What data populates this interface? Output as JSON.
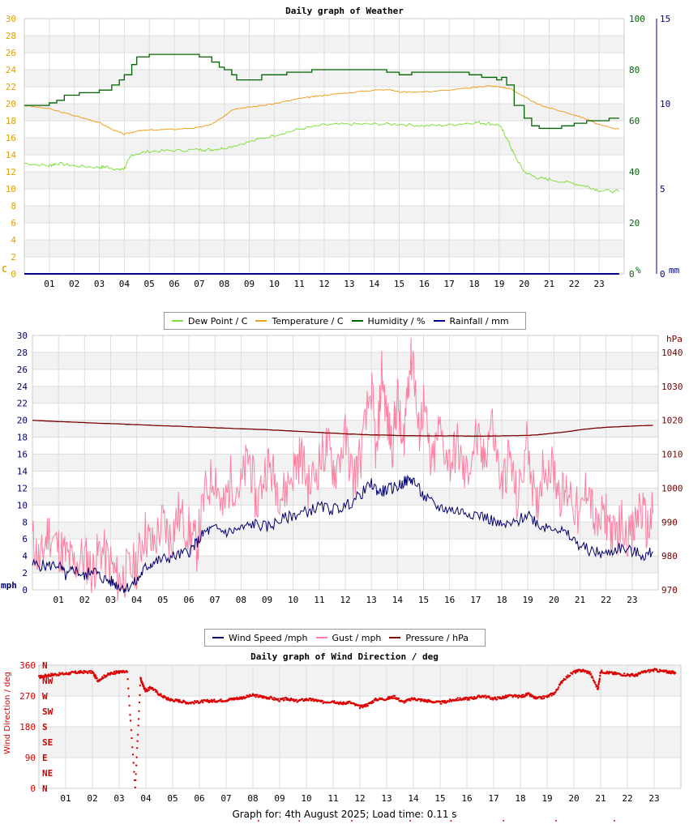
{
  "footer": "Graph for: 4th August 2025; Load time: 0.11 s",
  "colors": {
    "dew": "#7fe03c",
    "temp": "#f0a020",
    "hum": "#006400",
    "rain": "#00008b",
    "wind": "#00006e",
    "gust": "#ff7fa0",
    "pres": "#7a0000",
    "dir": "#dd0000"
  },
  "chart_data": [
    {
      "type": "line",
      "title": "Daily graph of Weather",
      "x_tick_labels": [
        "01",
        "02",
        "03",
        "04",
        "05",
        "06",
        "07",
        "08",
        "09",
        "10",
        "11",
        "12",
        "13",
        "14",
        "15",
        "16",
        "17",
        "18",
        "19",
        "20",
        "21",
        "22",
        "23"
      ],
      "y_left": {
        "unit": "C",
        "ticks": [
          "0",
          "2",
          "4",
          "6",
          "8",
          "10",
          "12",
          "14",
          "16",
          "18",
          "20",
          "22",
          "24",
          "26",
          "28",
          "30"
        ],
        "range": [
          0,
          30
        ]
      },
      "y_right1": {
        "unit": "%",
        "ticks": [
          "0",
          "20",
          "40",
          "60",
          "80",
          "100"
        ],
        "range": [
          0,
          100
        ]
      },
      "y_right2": {
        "unit": "mm",
        "ticks": [
          "0",
          "5",
          "10",
          "15"
        ],
        "range": [
          0,
          15
        ]
      },
      "legend": [
        "Dew Point / C",
        "Temperature / C",
        "Humidity / %",
        "Rainfall / mm"
      ],
      "series": [
        {
          "name": "Dew Point / C",
          "axis": "left",
          "x": [
            0,
            1,
            1.3,
            2,
            3,
            3.3,
            3.8,
            4,
            4.3,
            5,
            6,
            7,
            7.5,
            8,
            9,
            10,
            11,
            12,
            13,
            14,
            15,
            16,
            17,
            18,
            18.5,
            19,
            19.3,
            19.6,
            20,
            20.5,
            21,
            22,
            22.5,
            23,
            23.8
          ],
          "values": [
            13.0,
            12.7,
            13.0,
            12.7,
            12.5,
            12.6,
            12.2,
            12.4,
            14.0,
            14.4,
            14.5,
            14.6,
            14.6,
            14.8,
            15.5,
            16.3,
            17.0,
            17.5,
            17.6,
            17.6,
            17.6,
            17.4,
            17.5,
            17.8,
            17.7,
            17.5,
            16.0,
            14.0,
            12.0,
            11.3,
            11.1,
            10.6,
            10.3,
            9.8,
            9.7
          ]
        },
        {
          "name": "Temperature / C",
          "axis": "left",
          "x": [
            0,
            1,
            2,
            2.5,
            3,
            3.5,
            4,
            4.5,
            5,
            6,
            7,
            7.5,
            8,
            8.3,
            8.6,
            9,
            10,
            11,
            11.5,
            12,
            13,
            14,
            14.5,
            15,
            16,
            17,
            18,
            18.5,
            19,
            19.5,
            20,
            20.5,
            21,
            22,
            22.5,
            23,
            23.8
          ],
          "values": [
            19.8,
            19.4,
            18.6,
            18.2,
            17.8,
            17.0,
            16.4,
            16.8,
            16.9,
            17.0,
            17.2,
            17.6,
            18.5,
            19.3,
            19.5,
            19.6,
            20.0,
            20.6,
            20.8,
            21.0,
            21.3,
            21.6,
            21.7,
            21.4,
            21.4,
            21.6,
            21.9,
            22.1,
            22.0,
            21.7,
            20.8,
            20.0,
            19.5,
            18.7,
            18.2,
            17.5,
            17.0
          ]
        },
        {
          "name": "Humidity / %",
          "axis": "right1",
          "x": [
            0,
            0.6,
            1,
            1.3,
            1.6,
            2.2,
            2.6,
            3.0,
            3.5,
            3.8,
            4.0,
            4.3,
            4.5,
            5.0,
            5.5,
            6.0,
            6.5,
            7.0,
            7.5,
            7.8,
            8.0,
            8.3,
            8.5,
            8.8,
            9.5,
            10.0,
            10.5,
            11,
            11.5,
            12,
            12.5,
            13,
            13.5,
            14,
            14.5,
            15,
            15.5,
            16,
            16.5,
            17,
            17.5,
            17.8,
            18.0,
            18.3,
            18.5,
            18.9,
            19.1,
            19.3,
            19.6,
            20.0,
            20.3,
            20.6,
            21,
            21.5,
            22,
            22.5,
            23,
            23.4,
            23.8
          ],
          "values": [
            66,
            66,
            67,
            68,
            70,
            71,
            71,
            72,
            74,
            76,
            78,
            82,
            85,
            86,
            86,
            86,
            86,
            85,
            83,
            81,
            80,
            78,
            76,
            76,
            78,
            78,
            79,
            79,
            80,
            80,
            80,
            80,
            80,
            80,
            79,
            78,
            79,
            79,
            79,
            79,
            79,
            78,
            78,
            77,
            77,
            76,
            77,
            74,
            66,
            61,
            58,
            57,
            57,
            58,
            59,
            60,
            60,
            61,
            61
          ]
        },
        {
          "name": "Rainfall / mm",
          "axis": "right2",
          "x": [
            0,
            23.8
          ],
          "values": [
            0,
            0
          ]
        }
      ]
    },
    {
      "type": "line",
      "x_tick_labels": [
        "01",
        "02",
        "03",
        "04",
        "05",
        "06",
        "07",
        "08",
        "09",
        "10",
        "11",
        "12",
        "13",
        "14",
        "15",
        "16",
        "17",
        "18",
        "19",
        "20",
        "21",
        "22",
        "23"
      ],
      "y_left": {
        "unit": "mph",
        "ticks": [
          "0",
          "2",
          "4",
          "6",
          "8",
          "10",
          "12",
          "14",
          "16",
          "18",
          "20",
          "22",
          "24",
          "26",
          "28",
          "30"
        ],
        "range": [
          0,
          30
        ]
      },
      "y_right": {
        "unit": "hPa",
        "ticks": [
          "970",
          "980",
          "990",
          "1000",
          "1010",
          "1020",
          "1030",
          "1040"
        ],
        "range": [
          970,
          1045
        ]
      },
      "legend": [
        "Wind Speed /mph",
        "Gust / mph",
        "Pressure / hPa"
      ],
      "series": [
        {
          "name": "Wind Speed /mph",
          "axis": "left",
          "x": [
            0,
            0.5,
            1,
            1.3,
            1.6,
            2,
            2.3,
            2.6,
            3,
            3.3,
            3.6,
            4,
            4.3,
            4.6,
            5,
            5.5,
            6,
            6.3,
            6.6,
            7,
            7.5,
            8,
            8.5,
            9,
            9.5,
            10,
            10.5,
            11,
            11.5,
            12,
            12.5,
            13,
            13.3,
            13.6,
            14,
            14.3,
            14.6,
            15,
            15.5,
            16,
            16.5,
            17,
            17.5,
            18,
            18.5,
            19,
            19.5,
            20,
            20.5,
            21,
            21.5,
            22,
            22.5,
            23,
            23.5,
            23.8
          ],
          "values": [
            3.0,
            2.8,
            3.0,
            1.5,
            2.5,
            1.5,
            2.5,
            1.5,
            1.0,
            0.5,
            0.2,
            1.0,
            2.5,
            3.2,
            3.6,
            4.0,
            4.5,
            5.5,
            6.8,
            7.2,
            6.8,
            7.2,
            7.8,
            7.4,
            8.2,
            8.8,
            9.2,
            9.8,
            9.5,
            9.8,
            11.0,
            12.5,
            11.5,
            11.8,
            12.2,
            12.8,
            13.0,
            11.0,
            9.8,
            9.5,
            9.2,
            9.0,
            8.4,
            7.5,
            7.8,
            9.0,
            7.5,
            7.5,
            6.5,
            5.2,
            4.5,
            4.2,
            5.0,
            4.5,
            4.0,
            4.5
          ]
        },
        {
          "name": "Gust / mph",
          "axis": "left",
          "x": [
            0,
            0.3,
            0.6,
            1,
            1.3,
            1.6,
            2,
            2.3,
            2.6,
            3,
            3.3,
            3.6,
            4,
            4.3,
            4.6,
            5,
            5.3,
            5.6,
            6,
            6.3,
            6.6,
            7,
            7.3,
            7.6,
            8,
            8.3,
            8.6,
            9,
            9.3,
            9.6,
            10,
            10.3,
            10.6,
            11,
            11.3,
            11.6,
            12,
            12.3,
            12.6,
            13,
            13.2,
            13.4,
            13.6,
            13.8,
            14,
            14.2,
            14.4,
            14.6,
            14.8,
            15,
            15.3,
            15.6,
            16,
            16.3,
            16.6,
            17,
            17.3,
            17.6,
            18,
            18.3,
            18.6,
            19,
            19.3,
            19.6,
            20,
            20.3,
            20.6,
            21,
            21.3,
            21.6,
            22,
            22.3,
            22.6,
            23,
            23.3,
            23.6,
            23.8
          ],
          "values": [
            6,
            3,
            7,
            5,
            4,
            3,
            4,
            2,
            5,
            3,
            1,
            2,
            3,
            7,
            5,
            8,
            6,
            9,
            7,
            5,
            11,
            14,
            9,
            13,
            12,
            16,
            10,
            15,
            13,
            11,
            14,
            16,
            12,
            15,
            17,
            14,
            18,
            13,
            16,
            24,
            15,
            26,
            20,
            17,
            23,
            16,
            25,
            28,
            18,
            22,
            14,
            19,
            15,
            17,
            13,
            18,
            15,
            20,
            12,
            16,
            10,
            18,
            9,
            15,
            14,
            11,
            12,
            8,
            13,
            7,
            9,
            6,
            8,
            6,
            10,
            7,
            9
          ]
        },
        {
          "name": "Pressure / hPa",
          "axis": "right",
          "x": [
            0,
            1,
            2,
            3,
            4,
            5,
            6,
            7,
            8,
            9,
            10,
            11,
            12,
            13,
            14,
            15,
            16,
            17,
            18,
            19,
            19.5,
            20,
            20.5,
            21,
            21.5,
            22,
            23,
            23.8
          ],
          "values": [
            1020.0,
            1019.6,
            1019.3,
            1019.0,
            1018.7,
            1018.4,
            1018.1,
            1017.8,
            1017.5,
            1017.2,
            1016.8,
            1016.4,
            1016.0,
            1015.7,
            1015.5,
            1015.4,
            1015.4,
            1015.3,
            1015.4,
            1015.5,
            1015.8,
            1016.2,
            1016.6,
            1017.2,
            1017.6,
            1017.9,
            1018.3,
            1018.5
          ]
        }
      ]
    },
    {
      "type": "scatter",
      "title": "Daily graph of Wind Direction / deg",
      "ylabel": "Wind Direction / deg",
      "x_tick_labels": [
        "01",
        "02",
        "03",
        "04",
        "05",
        "06",
        "07",
        "08",
        "09",
        "10",
        "11",
        "12",
        "13",
        "14",
        "15",
        "16",
        "17",
        "18",
        "19",
        "20",
        "21",
        "22",
        "23"
      ],
      "y_ticks": [
        "0",
        "90",
        "180",
        "270",
        "360"
      ],
      "y_range": [
        0,
        360
      ],
      "compass_labels": [
        "N",
        "NE",
        "E",
        "SE",
        "S",
        "SW",
        "W",
        "NW",
        "N"
      ],
      "series": [
        {
          "name": "",
          "x": [
            0,
            0.3,
            0.6,
            1,
            1.3,
            1.6,
            2,
            2.2,
            2.5,
            2.8,
            3.0,
            3.3,
            3.6,
            3.8,
            3.9,
            4.0,
            4.2,
            4.5,
            4.8,
            5.0,
            5.3,
            5.6,
            6,
            6.3,
            6.6,
            7,
            7.3,
            7.6,
            8,
            8.3,
            8.6,
            9,
            9.3,
            9.6,
            10,
            10.3,
            10.6,
            11,
            11.3,
            11.6,
            12,
            12.3,
            12.6,
            13,
            13.3,
            13.6,
            14,
            14.3,
            14.6,
            15,
            15.3,
            15.6,
            16,
            16.3,
            16.6,
            17,
            17.3,
            17.6,
            18,
            18.3,
            18.6,
            19,
            19.3,
            19.6,
            20,
            20.3,
            20.6,
            20.9,
            21,
            21.3,
            21.6,
            22,
            22.3,
            22.6,
            23,
            23.3,
            23.6,
            23.8
          ],
          "values": [
            325,
            330,
            333,
            335,
            338,
            340,
            340,
            315,
            330,
            338,
            340,
            340,
            0,
            320,
            300,
            285,
            295,
            275,
            262,
            258,
            255,
            250,
            253,
            255,
            256,
            258,
            262,
            265,
            272,
            268,
            265,
            258,
            262,
            255,
            260,
            258,
            252,
            255,
            248,
            252,
            238,
            245,
            260,
            262,
            268,
            252,
            262,
            258,
            255,
            250,
            255,
            260,
            262,
            265,
            270,
            262,
            265,
            270,
            268,
            275,
            262,
            268,
            280,
            318,
            340,
            345,
            338,
            290,
            342,
            338,
            335,
            332,
            330,
            340,
            346,
            342,
            340,
            338
          ]
        }
      ]
    }
  ]
}
